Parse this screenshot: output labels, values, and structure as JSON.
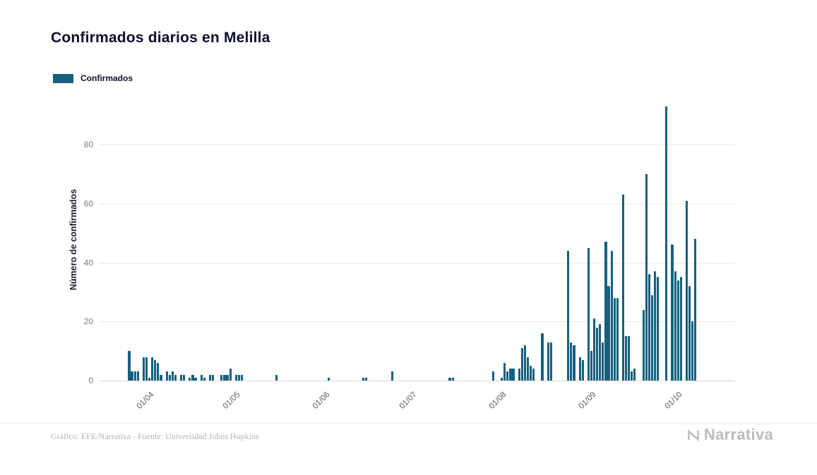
{
  "title": "Confirmados diarios en Melilla",
  "legend": {
    "label": "Confirmados"
  },
  "footer": {
    "credit": "Gráfico: EFE/Narrativa - Fuente: Universidad Johns Hopkins",
    "brand": "Narrativa"
  },
  "colors": {
    "bar": "#15607e",
    "grid": "#e9e9e9",
    "axis_text": "#7d7d7d",
    "title_text": "#0e0e2c",
    "muted_text": "#b2b2b2"
  },
  "chart_data": {
    "type": "bar",
    "title": "Confirmados diarios en Melilla",
    "series_name": "Confirmados",
    "xlabel": "",
    "ylabel": "Número de confirmados",
    "x_unit": "day",
    "start_date": "2020-03-15",
    "end_date": "2020-10-20",
    "grid": true,
    "legend_position": "top-left",
    "yticks": [
      0,
      20,
      40,
      60,
      80
    ],
    "ylim": [
      0,
      96
    ],
    "x_ticks": [
      {
        "label": "01/04",
        "index": 17
      },
      {
        "label": "01/05",
        "index": 47
      },
      {
        "label": "01/06",
        "index": 78
      },
      {
        "label": "01/07",
        "index": 108
      },
      {
        "label": "01/08",
        "index": 139
      },
      {
        "label": "01/09",
        "index": 170
      },
      {
        "label": "01/10",
        "index": 200
      }
    ],
    "values": [
      0,
      0,
      0,
      0,
      0,
      0,
      0,
      0,
      0,
      0,
      10,
      3,
      3,
      3,
      0,
      8,
      8,
      1,
      8,
      7,
      6,
      2,
      0,
      3,
      2,
      3,
      2,
      0,
      2,
      2,
      0,
      1,
      2,
      1,
      0,
      2,
      1,
      0,
      2,
      2,
      0,
      0,
      2,
      2,
      2,
      4,
      0,
      2,
      2,
      2,
      0,
      0,
      0,
      0,
      0,
      0,
      0,
      0,
      0,
      0,
      0,
      2,
      0,
      0,
      0,
      0,
      0,
      0,
      0,
      0,
      0,
      0,
      0,
      0,
      0,
      0,
      0,
      0,
      0,
      1,
      0,
      0,
      0,
      0,
      0,
      0,
      0,
      0,
      0,
      0,
      0,
      1,
      1,
      0,
      0,
      0,
      0,
      0,
      0,
      0,
      0,
      3,
      0,
      0,
      0,
      0,
      0,
      0,
      0,
      0,
      0,
      0,
      0,
      0,
      0,
      0,
      0,
      0,
      0,
      0,
      0,
      1,
      1,
      0,
      0,
      0,
      0,
      0,
      0,
      0,
      0,
      0,
      0,
      0,
      0,
      0,
      3,
      0,
      0,
      1,
      6,
      3,
      4,
      4,
      0,
      4,
      11,
      12,
      8,
      5,
      4,
      0,
      0,
      16,
      0,
      13,
      13,
      0,
      0,
      0,
      0,
      0,
      44,
      13,
      12,
      0,
      8,
      7,
      0,
      45,
      10,
      21,
      18,
      19,
      13,
      47,
      32,
      44,
      28,
      28,
      0,
      63,
      15,
      15,
      3,
      4,
      0,
      0,
      24,
      70,
      36,
      29,
      37,
      35,
      0,
      0,
      93,
      0,
      46,
      37,
      34,
      35,
      0,
      61,
      32,
      20,
      48,
      0,
      0,
      0,
      0,
      0,
      0,
      0,
      0,
      0,
      0,
      0,
      0,
      0
    ]
  }
}
